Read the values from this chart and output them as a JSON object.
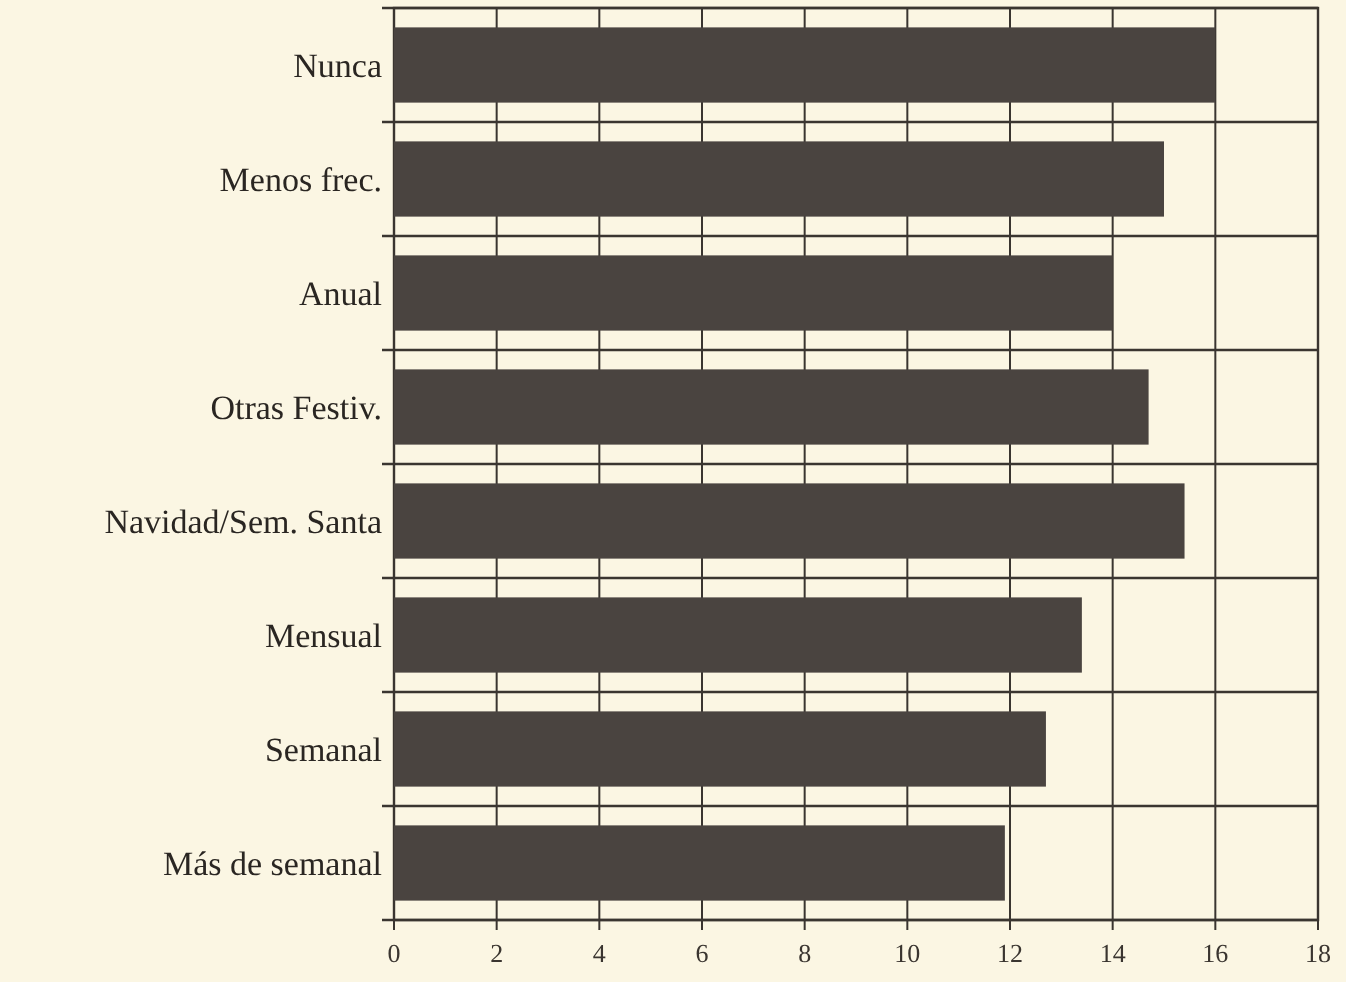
{
  "chart_data": {
    "type": "bar",
    "orientation": "horizontal",
    "categories": [
      "Nunca",
      "Menos frec.",
      "Anual",
      "Otras Festiv.",
      "Navidad/Sem. Santa",
      "Mensual",
      "Semanal",
      "Más de semanal"
    ],
    "values": [
      16.0,
      15.0,
      14.0,
      14.7,
      15.4,
      13.4,
      12.7,
      11.9
    ],
    "color": "#4a4440",
    "xlim": [
      0,
      18
    ],
    "xticks": [
      0,
      2,
      4,
      6,
      8,
      10,
      12,
      14,
      16,
      18
    ],
    "grid": true
  }
}
